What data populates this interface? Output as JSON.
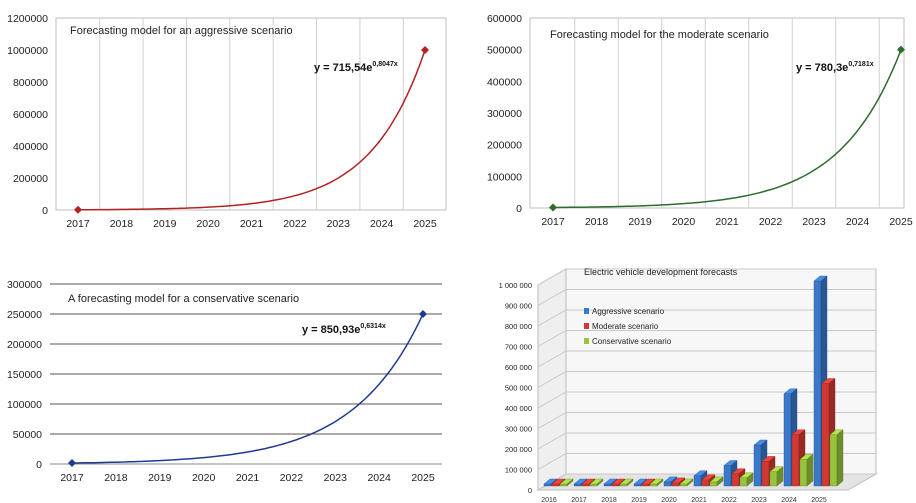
{
  "chart_data": [
    {
      "type": "line",
      "title": "Forecasting model for an aggressive scenario",
      "equation": {
        "prefix": "y = 715,54e",
        "exponent": "0,8047x"
      },
      "x": [
        "2017",
        "2018",
        "2019",
        "2020",
        "2021",
        "2022",
        "2023",
        "2024",
        "2025"
      ],
      "marked_points": [
        {
          "x": "2017",
          "y": 1600
        },
        {
          "x": "2025",
          "y": 1000000
        }
      ],
      "curve": {
        "a": 715.54,
        "b": 0.8047
      },
      "y_ticks": [
        "0",
        "200000",
        "400000",
        "600000",
        "800000",
        "1000000",
        "1200000"
      ],
      "ylim": [
        0,
        1200000
      ],
      "grid": "vertical",
      "color": "#b22222"
    },
    {
      "type": "line",
      "title": "Forecasting model for the moderate scenario",
      "equation": {
        "prefix": "y = 780,3e",
        "exponent": "0,7181x"
      },
      "x": [
        "2017",
        "2018",
        "2019",
        "2020",
        "2021",
        "2022",
        "2023",
        "2024",
        "2025"
      ],
      "marked_points": [
        {
          "x": "2017",
          "y": 1600
        },
        {
          "x": "2025",
          "y": 500000
        }
      ],
      "curve": {
        "a": 780.3,
        "b": 0.7181
      },
      "y_ticks": [
        "0",
        "100000",
        "200000",
        "300000",
        "400000",
        "500000",
        "600000"
      ],
      "ylim": [
        0,
        600000
      ],
      "grid": "vertical",
      "color": "#2e6b2e"
    },
    {
      "type": "line",
      "title": "A forecasting model for a conservative scenario",
      "equation": {
        "prefix": "y = 850,93e",
        "exponent": "0,6314x"
      },
      "x": [
        "2017",
        "2018",
        "2019",
        "2020",
        "2021",
        "2022",
        "2023",
        "2024",
        "2025"
      ],
      "marked_points": [
        {
          "x": "2017",
          "y": 1600
        },
        {
          "x": "2025",
          "y": 250000
        }
      ],
      "curve": {
        "a": 850.93,
        "b": 0.6314
      },
      "y_ticks": [
        "0",
        "50000",
        "100000",
        "150000",
        "200000",
        "250000",
        "300000"
      ],
      "ylim": [
        0,
        300000
      ],
      "grid": "horizontal",
      "color": "#1f3a93"
    },
    {
      "type": "bar",
      "style": "3d-clustered",
      "title": "Electric vehicle development forecasts",
      "categories": [
        "2016",
        "2017",
        "2018",
        "2019",
        "2020",
        "2021",
        "2022",
        "2023",
        "2024",
        "2025"
      ],
      "series": [
        {
          "name": "Aggressive scenario",
          "color": "#3a78c9",
          "values": [
            5000,
            5000,
            5000,
            5000,
            20000,
            50000,
            100000,
            200000,
            450000,
            1000000
          ]
        },
        {
          "name": "Moderate scenario",
          "color": "#d03a32",
          "values": [
            5000,
            5000,
            5000,
            5000,
            15000,
            30000,
            60000,
            120000,
            250000,
            500000
          ]
        },
        {
          "name": "Conservative scenario",
          "color": "#97c33f",
          "values": [
            5000,
            5000,
            5000,
            5000,
            10000,
            20000,
            40000,
            70000,
            130000,
            250000
          ]
        }
      ],
      "y_ticks": [
        "0",
        "100 000",
        "200 000",
        "300 000",
        "400 000",
        "500 000",
        "600 000",
        "700 000",
        "800 000",
        "900 000",
        "1 000 000"
      ],
      "ylim": [
        0,
        1000000
      ],
      "legend_position": "left-inside"
    }
  ]
}
